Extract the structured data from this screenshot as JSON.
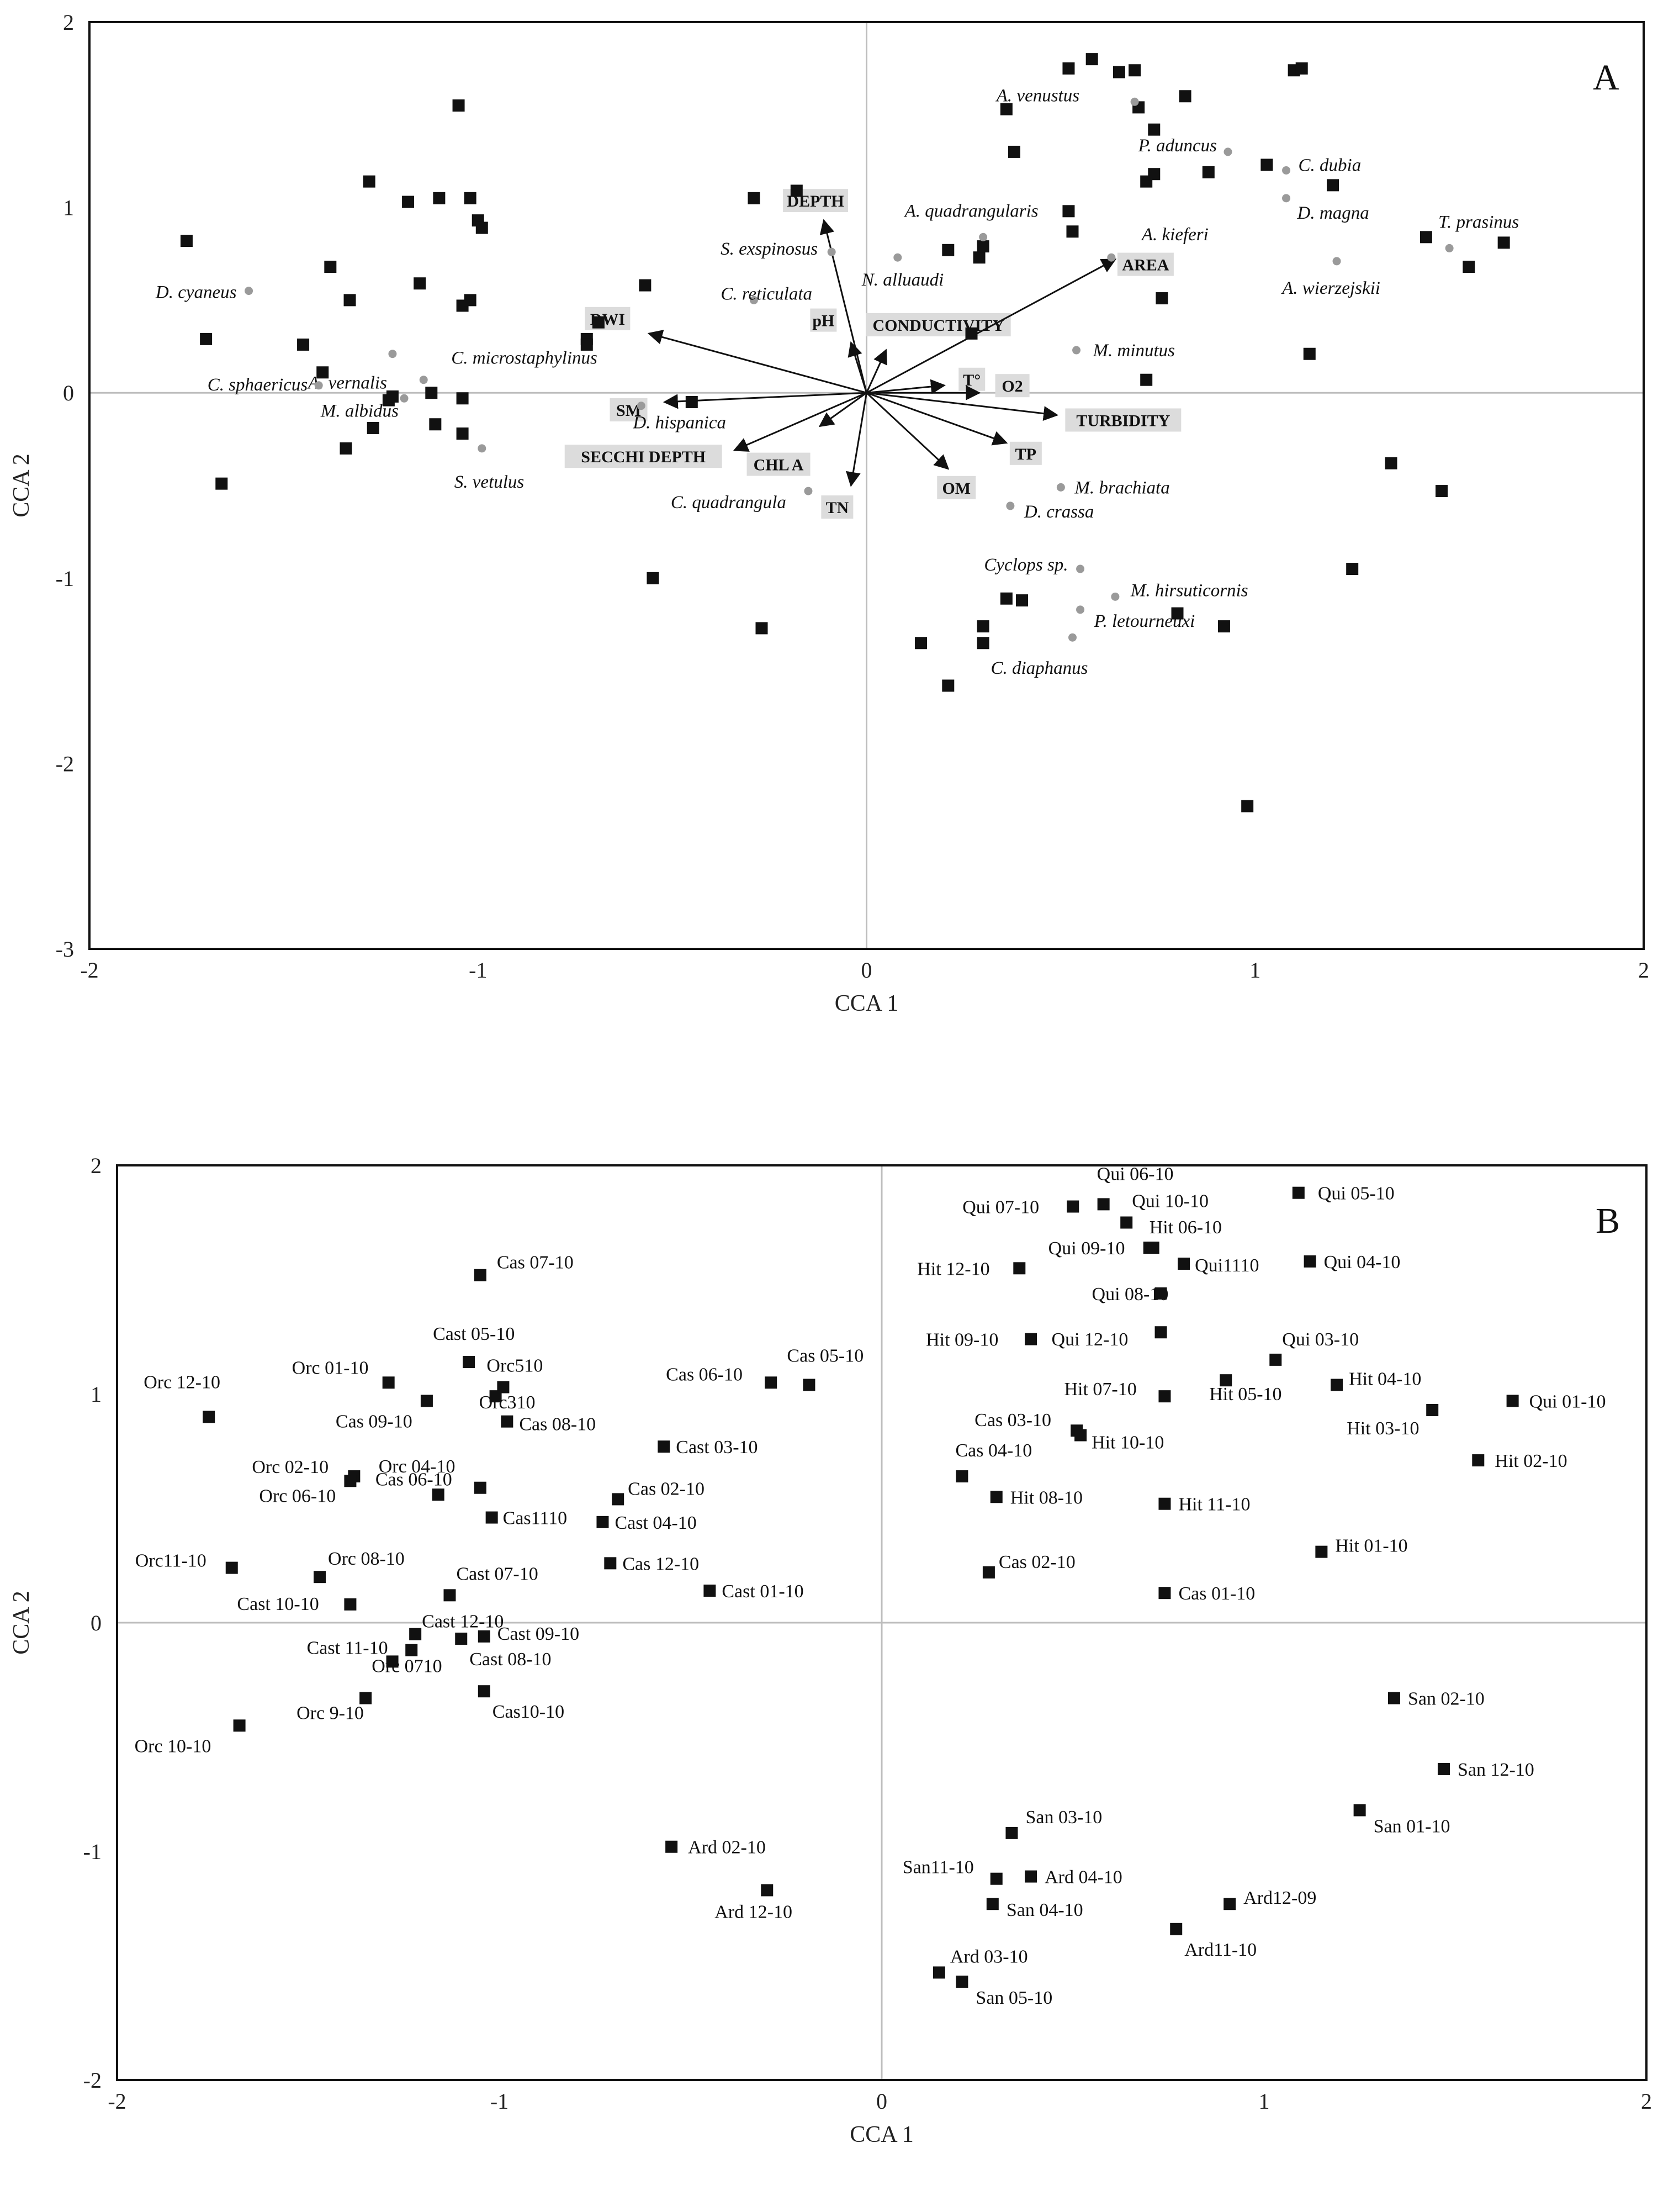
{
  "chart_data": [
    {
      "type": "scatter",
      "panel": "A",
      "xlabel": "CCA 1",
      "ylabel": "CCA 2",
      "xlim": [
        -2,
        2
      ],
      "ylim": [
        -3,
        2
      ],
      "xticks": [
        "-2",
        "-1",
        "0",
        "1",
        "2"
      ],
      "yticks": [
        "-3",
        "-2",
        "-1",
        "0",
        "1",
        "2"
      ],
      "grid": false,
      "sites": [
        [
          -1.75,
          0.82
        ],
        [
          -1.7,
          0.29
        ],
        [
          -1.66,
          -0.49
        ],
        [
          -1.45,
          0.26
        ],
        [
          -1.4,
          0.11
        ],
        [
          -1.38,
          0.68
        ],
        [
          -1.33,
          0.5
        ],
        [
          -1.34,
          -0.3
        ],
        [
          -1.28,
          1.14
        ],
        [
          -1.27,
          -0.19
        ],
        [
          -1.23,
          -0.04
        ],
        [
          -1.22,
          -0.02
        ],
        [
          -1.18,
          1.03
        ],
        [
          -1.15,
          0.59
        ],
        [
          -1.12,
          0.0
        ],
        [
          -1.11,
          -0.17
        ],
        [
          -1.1,
          1.05
        ],
        [
          -1.05,
          1.55
        ],
        [
          -1.04,
          0.47
        ],
        [
          -1.04,
          -0.22
        ],
        [
          -1.04,
          -0.03
        ],
        [
          -1.02,
          1.05
        ],
        [
          -1.02,
          0.5
        ],
        [
          -1.0,
          0.93
        ],
        [
          -0.99,
          0.89
        ],
        [
          -0.72,
          0.29
        ],
        [
          -0.72,
          0.26
        ],
        [
          -0.69,
          0.38
        ],
        [
          -0.57,
          0.58
        ],
        [
          -0.55,
          -1.0
        ],
        [
          -0.45,
          -0.05
        ],
        [
          -0.29,
          1.05
        ],
        [
          -0.27,
          -1.27
        ],
        [
          -0.18,
          1.09
        ],
        [
          0.14,
          -1.35
        ],
        [
          0.21,
          0.77
        ],
        [
          0.21,
          -1.58
        ],
        [
          0.27,
          0.32
        ],
        [
          0.29,
          0.73
        ],
        [
          0.3,
          -1.26
        ],
        [
          0.3,
          -1.35
        ],
        [
          0.3,
          0.79
        ],
        [
          0.36,
          -1.11
        ],
        [
          0.36,
          1.53
        ],
        [
          0.38,
          1.3
        ],
        [
          0.4,
          -1.12
        ],
        [
          0.52,
          0.98
        ],
        [
          0.53,
          0.87
        ],
        [
          0.52,
          1.75
        ],
        [
          0.58,
          1.8
        ],
        [
          0.65,
          1.73
        ],
        [
          0.69,
          1.74
        ],
        [
          0.7,
          1.54
        ],
        [
          0.72,
          0.07
        ],
        [
          0.72,
          1.14
        ],
        [
          0.74,
          1.42
        ],
        [
          0.74,
          1.18
        ],
        [
          0.76,
          0.51
        ],
        [
          0.8,
          -1.19
        ],
        [
          0.82,
          1.6
        ],
        [
          0.88,
          1.19
        ],
        [
          0.92,
          -1.26
        ],
        [
          0.98,
          -2.23
        ],
        [
          1.03,
          1.23
        ],
        [
          1.1,
          1.74
        ],
        [
          1.12,
          1.75
        ],
        [
          1.14,
          0.21
        ],
        [
          1.2,
          1.12
        ],
        [
          1.25,
          -0.95
        ],
        [
          1.35,
          -0.38
        ],
        [
          1.44,
          0.84
        ],
        [
          1.48,
          -0.53
        ],
        [
          1.55,
          0.68
        ],
        [
          1.64,
          0.81
        ]
      ],
      "species": [
        {
          "name": "A. venustus",
          "x": 0.69,
          "y": 1.57
        },
        {
          "name": "P. aduncus",
          "x": 0.93,
          "y": 1.3
        },
        {
          "name": "C. dubia",
          "x": 1.08,
          "y": 1.2
        },
        {
          "name": "D. magna",
          "x": 1.08,
          "y": 1.05
        },
        {
          "name": "T. prasinus",
          "x": 1.5,
          "y": 0.78
        },
        {
          "name": "A. quadrangularis",
          "x": 0.3,
          "y": 0.84
        },
        {
          "name": "A. kieferi",
          "x": 0.63,
          "y": 0.73
        },
        {
          "name": "A. wierzejskii",
          "x": 1.21,
          "y": 0.71
        },
        {
          "name": "S. exspinosus",
          "x": -0.09,
          "y": 0.76
        },
        {
          "name": "N. alluaudi",
          "x": 0.08,
          "y": 0.73
        },
        {
          "name": "C. reticulata",
          "x": -0.29,
          "y": 0.5
        },
        {
          "name": "D. cyaneus",
          "x": -1.59,
          "y": 0.55
        },
        {
          "name": "M. minutus",
          "x": 0.54,
          "y": 0.23
        },
        {
          "name": "A. vernalis",
          "x": -1.22,
          "y": 0.21
        },
        {
          "name": "C. microstaphylinus",
          "x": -1.14,
          "y": 0.07
        },
        {
          "name": "C. sphaericus",
          "x": -1.41,
          "y": 0.04
        },
        {
          "name": "M. albidus",
          "x": -1.19,
          "y": -0.03
        },
        {
          "name": "D. hispanica",
          "x": -0.58,
          "y": -0.07
        },
        {
          "name": "S. vetulus",
          "x": -0.99,
          "y": -0.3
        },
        {
          "name": "C. quadrangula",
          "x": -0.15,
          "y": -0.53
        },
        {
          "name": "M. brachiata",
          "x": 0.5,
          "y": -0.51
        },
        {
          "name": "D. crassa",
          "x": 0.37,
          "y": -0.61
        },
        {
          "name": "Cyclops sp.",
          "x": 0.55,
          "y": -0.95
        },
        {
          "name": "M. hirsuticornis",
          "x": 0.64,
          "y": -1.1
        },
        {
          "name": "P. letourneuxi",
          "x": 0.55,
          "y": -1.17
        },
        {
          "name": "C. diaphanus",
          "x": 0.53,
          "y": -1.32
        }
      ],
      "vectors": [
        {
          "name": "DEPTH",
          "x": -0.11,
          "y": 0.93
        },
        {
          "name": "pH",
          "x": -0.04,
          "y": 0.27
        },
        {
          "name": "CONDUCTIVITY",
          "x": 0.05,
          "y": 0.23
        },
        {
          "name": "AREA",
          "x": 0.64,
          "y": 0.72
        },
        {
          "name": "DWI",
          "x": -0.56,
          "y": 0.32
        },
        {
          "name": "T°",
          "x": 0.2,
          "y": 0.04
        },
        {
          "name": "O2",
          "x": 0.29,
          "y": 0.0
        },
        {
          "name": "TURBIDITY",
          "x": 0.49,
          "y": -0.12
        },
        {
          "name": "SM",
          "x": -0.52,
          "y": -0.05
        },
        {
          "name": "SECCHI DEPTH",
          "x": -0.34,
          "y": -0.31
        },
        {
          "name": "CHL A",
          "x": -0.12,
          "y": -0.18
        },
        {
          "name": "TN",
          "x": -0.04,
          "y": -0.5
        },
        {
          "name": "OM",
          "x": 0.21,
          "y": -0.41
        },
        {
          "name": "TP",
          "x": 0.36,
          "y": -0.27
        }
      ]
    },
    {
      "type": "scatter",
      "panel": "B",
      "xlabel": "CCA 1",
      "ylabel": "CCA 2",
      "xlim": [
        -2,
        2
      ],
      "ylim": [
        -2,
        2
      ],
      "xticks": [
        "-2",
        "-1",
        "0",
        "1",
        "2"
      ],
      "yticks": [
        "-2",
        "-1",
        "0",
        "1",
        "2"
      ],
      "grid": false,
      "points": [
        {
          "label": "Cas 07-10",
          "x": -1.05,
          "y": 1.52
        },
        {
          "label": "Cast 05-10",
          "x": -1.08,
          "y": 1.14
        },
        {
          "label": "Orc 01-10",
          "x": -1.29,
          "y": 1.05
        },
        {
          "label": "Orc510",
          "x": -0.99,
          "y": 1.03
        },
        {
          "label": "Orc310",
          "x": -1.01,
          "y": 0.99
        },
        {
          "label": "Cas 09-10",
          "x": -1.19,
          "y": 0.97
        },
        {
          "label": "Cas 08-10",
          "x": -0.98,
          "y": 0.88
        },
        {
          "label": "Orc 12-10",
          "x": -1.76,
          "y": 0.9
        },
        {
          "label": "Cas 06-10",
          "x": -0.29,
          "y": 1.05
        },
        {
          "label": "Cas 05-10",
          "x": -0.19,
          "y": 1.04
        },
        {
          "label": "Cast 03-10",
          "x": -0.57,
          "y": 0.77
        },
        {
          "label": "Orc 02-10",
          "x": -1.38,
          "y": 0.64
        },
        {
          "label": "Orc 06-10",
          "x": -1.39,
          "y": 0.62
        },
        {
          "label": "Orc 04-10",
          "x": -1.16,
          "y": 0.56
        },
        {
          "label": "Cas 06-10",
          "x": -1.05,
          "y": 0.59
        },
        {
          "label": "Cas 02-10",
          "x": -0.69,
          "y": 0.54
        },
        {
          "label": "Cas1110",
          "x": -1.02,
          "y": 0.46
        },
        {
          "label": "Cast 04-10",
          "x": -0.73,
          "y": 0.44
        },
        {
          "label": "Orc11-10",
          "x": -1.7,
          "y": 0.24
        },
        {
          "label": "Orc 08-10",
          "x": -1.47,
          "y": 0.2
        },
        {
          "label": "Cas 12-10",
          "x": -0.71,
          "y": 0.26
        },
        {
          "label": "Cast 01-10",
          "x": -0.45,
          "y": 0.14
        },
        {
          "label": "Cast 10-10",
          "x": -1.39,
          "y": 0.08
        },
        {
          "label": "Cast 07-10",
          "x": -1.13,
          "y": 0.12
        },
        {
          "label": "Cast 12-10",
          "x": -1.22,
          "y": -0.05
        },
        {
          "label": "Cast 09-10",
          "x": -1.04,
          "y": -0.06
        },
        {
          "label": "Cast 08-10",
          "x": -1.1,
          "y": -0.07
        },
        {
          "label": "Cast 11-10",
          "x": -1.28,
          "y": -0.17
        },
        {
          "label": "Orc 0710",
          "x": -1.23,
          "y": -0.12
        },
        {
          "label": "Orc 9-10",
          "x": -1.35,
          "y": -0.33
        },
        {
          "label": "Cas10-10",
          "x": -1.04,
          "y": -0.3
        },
        {
          "label": "Orc 10-10",
          "x": -1.68,
          "y": -0.45
        },
        {
          "label": "Qui 06-10",
          "x": 0.58,
          "y": 1.83
        },
        {
          "label": "Qui 07-10",
          "x": 0.5,
          "y": 1.82
        },
        {
          "label": "Qui 05-10",
          "x": 1.09,
          "y": 1.88
        },
        {
          "label": "Qui 10-10",
          "x": 0.64,
          "y": 1.75
        },
        {
          "label": "Hit 06-10",
          "x": 0.7,
          "y": 1.64
        },
        {
          "label": "Qui 09-10",
          "x": 0.71,
          "y": 1.64
        },
        {
          "label": "Hit 12-10",
          "x": 0.36,
          "y": 1.55
        },
        {
          "label": "Qui1110",
          "x": 0.79,
          "y": 1.57
        },
        {
          "label": "Qui 04-10",
          "x": 1.12,
          "y": 1.58
        },
        {
          "label": "Qui 08-10",
          "x": 0.73,
          "y": 1.44
        },
        {
          "label": "Hit 09-10",
          "x": 0.39,
          "y": 1.24
        },
        {
          "label": "Qui 12-10",
          "x": 0.73,
          "y": 1.27
        },
        {
          "label": "Qui 03-10",
          "x": 1.03,
          "y": 1.15
        },
        {
          "label": "Hit 07-10",
          "x": 0.74,
          "y": 0.99
        },
        {
          "label": "Hit 05-10",
          "x": 0.9,
          "y": 1.06
        },
        {
          "label": "Hit 04-10",
          "x": 1.19,
          "y": 1.04
        },
        {
          "label": "Qui 01-10",
          "x": 1.65,
          "y": 0.97
        },
        {
          "label": "Hit 03-10",
          "x": 1.44,
          "y": 0.93
        },
        {
          "label": "Cas 03-10",
          "x": 0.51,
          "y": 0.84
        },
        {
          "label": "Hit 10-10",
          "x": 0.52,
          "y": 0.82
        },
        {
          "label": "Hit 02-10",
          "x": 1.56,
          "y": 0.71
        },
        {
          "label": "Cas 04-10",
          "x": 0.21,
          "y": 0.64
        },
        {
          "label": "Hit 08-10",
          "x": 0.3,
          "y": 0.55
        },
        {
          "label": "Hit 11-10",
          "x": 0.74,
          "y": 0.52
        },
        {
          "label": "Hit 01-10",
          "x": 1.15,
          "y": 0.31
        },
        {
          "label": "Cas 02-10",
          "x": 0.28,
          "y": 0.22
        },
        {
          "label": "Cas 01-10",
          "x": 0.74,
          "y": 0.13
        },
        {
          "label": "San 02-10",
          "x": 1.34,
          "y": -0.33
        },
        {
          "label": "San 12-10",
          "x": 1.47,
          "y": -0.64
        },
        {
          "label": "San 01-10",
          "x": 1.25,
          "y": -0.82
        },
        {
          "label": "Ard 02-10",
          "x": -0.55,
          "y": -0.98
        },
        {
          "label": "San 03-10",
          "x": 0.34,
          "y": -0.92
        },
        {
          "label": "San11-10",
          "x": 0.3,
          "y": -1.12
        },
        {
          "label": "Ard 04-10",
          "x": 0.39,
          "y": -1.11
        },
        {
          "label": "Ard 12-10",
          "x": -0.3,
          "y": -1.17
        },
        {
          "label": "Ard12-09",
          "x": 0.91,
          "y": -1.23
        },
        {
          "label": "San 04-10",
          "x": 0.29,
          "y": -1.23
        },
        {
          "label": "Ard11-10",
          "x": 0.77,
          "y": -1.34
        },
        {
          "label": "Ard 03-10",
          "x": 0.15,
          "y": -1.53
        },
        {
          "label": "San 05-10",
          "x": 0.21,
          "y": -1.57
        }
      ]
    }
  ]
}
